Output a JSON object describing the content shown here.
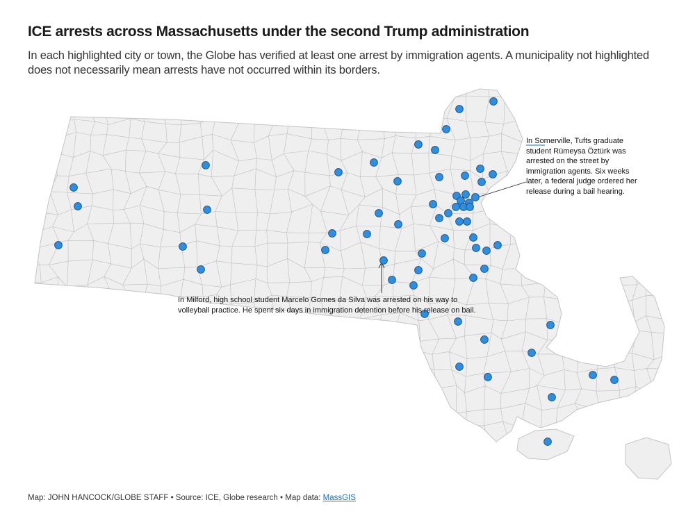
{
  "header": {
    "title": "ICE arrests across Massachusetts under the second Trump administration",
    "subtitle": "In each highlighted city or town, the Globe has verified at least one arrest by immigration agents. A municipality not highlighted does not necessarily mean arrests have not occurred within its borders."
  },
  "annotations": {
    "somerville": "In Somerville, Tufts graduate student Rümeysa Öztürk was arrested on the street by immigration agents. Six weeks later, a federal judge ordered her release during a bail hearing.",
    "milford": "In Milford, high school student Marcelo Gomes da Silva was arrested on his way to volleyball practice. He spent six days in immigration detention before his release on bail."
  },
  "footer": {
    "credit": "Map: JOHN HANCOCK/GLOBE STAFF",
    "separator": "•",
    "source": "Source: ICE, Globe research",
    "mapdata_label": "Map data:",
    "mapdata_link": "MassGIS"
  },
  "colors": {
    "land": "#efefef",
    "border": "#b5b5b5",
    "marker_fill": "#2e8ee0",
    "marker_stroke": "#1b4f86",
    "link": "#1a6fc0"
  }
}
